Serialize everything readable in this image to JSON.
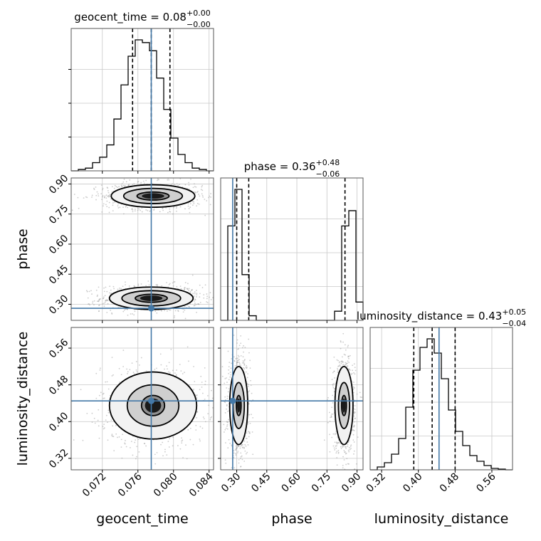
{
  "chart_data": {
    "type": "corner",
    "parameters": [
      {
        "name": "geocent_time",
        "title": "geocent_time = 0.08",
        "title_sup": "+0.00",
        "title_sub": "−0.00",
        "axis_label": "geocent_time",
        "range": [
          0.0685,
          0.0845
        ],
        "ticks": [
          0.072,
          0.076,
          0.08,
          0.084
        ],
        "tick_labels": [
          "0.072",
          "0.076",
          "0.080",
          "0.084"
        ],
        "truth": 0.0775,
        "quantiles": [
          0.0754,
          0.0775,
          0.0796
        ],
        "hist_edges_start": 0.0685,
        "hist_bin_width": 0.0008,
        "hist_counts": [
          0.0,
          0.01,
          0.02,
          0.06,
          0.1,
          0.19,
          0.38,
          0.63,
          0.84,
          0.96,
          0.94,
          0.88,
          0.68,
          0.45,
          0.24,
          0.12,
          0.06,
          0.02,
          0.01,
          0.0
        ]
      },
      {
        "name": "phase",
        "title": "phase = 0.36",
        "title_sup": "+0.48",
        "title_sub": "−0.06",
        "axis_label": "phase",
        "range": [
          0.22,
          0.93
        ],
        "ticks": [
          0.3,
          0.45,
          0.6,
          0.75,
          0.9
        ],
        "tick_labels": [
          "0.30",
          "0.45",
          "0.60",
          "0.75",
          "0.90"
        ],
        "truth": 0.28,
        "quantiles": [
          0.3,
          0.36,
          0.84
        ],
        "hist_edges_start": 0.22,
        "hist_bin_width": 0.0355,
        "hist_counts": [
          0.0,
          0.62,
          0.86,
          0.3,
          0.03,
          0.0,
          0.0,
          0.0,
          0.0,
          0.0,
          0.0,
          0.0,
          0.0,
          0.0,
          0.0,
          0.0,
          0.06,
          0.62,
          0.72,
          0.12
        ]
      },
      {
        "name": "luminosity_distance",
        "title": "luminosity_distance = 0.43",
        "title_sup": "+0.05",
        "title_sub": "−0.04",
        "axis_label": "luminosity_distance",
        "range": [
          0.295,
          0.605
        ],
        "ticks": [
          0.32,
          0.4,
          0.48,
          0.56
        ],
        "tick_labels": [
          "0.32",
          "0.40",
          "0.48",
          "0.56"
        ],
        "truth": 0.445,
        "quantiles": [
          0.39,
          0.43,
          0.48
        ],
        "hist_edges_start": 0.295,
        "hist_bin_width": 0.0155,
        "hist_counts": [
          0.0,
          0.02,
          0.05,
          0.11,
          0.22,
          0.44,
          0.7,
          0.86,
          0.92,
          0.82,
          0.64,
          0.42,
          0.27,
          0.17,
          0.1,
          0.06,
          0.03,
          0.01,
          0.005,
          0.0
        ]
      }
    ],
    "panels_2d": [
      {
        "x": "geocent_time",
        "y": "phase",
        "truth": [
          0.0775,
          0.28
        ],
        "modes": [
          {
            "center": [
              0.0775,
              0.33
            ],
            "contours": [
              [
                0.0018,
                0.02
              ],
              [
                0.0033,
                0.038
              ],
              [
                0.0047,
                0.056
              ]
            ]
          },
          {
            "center": [
              0.0777,
              0.84
            ],
            "contours": [
              [
                0.0018,
                0.02
              ],
              [
                0.0033,
                0.038
              ],
              [
                0.0047,
                0.056
              ]
            ]
          }
        ]
      },
      {
        "x": "geocent_time",
        "y": "luminosity_distance",
        "truth": [
          0.0775,
          0.445
        ],
        "modes": [
          {
            "center": [
              0.0777,
              0.435
            ],
            "contours": [
              [
                0.0013,
                0.022
              ],
              [
                0.0029,
                0.045
              ],
              [
                0.0049,
                0.073
              ]
            ]
          }
        ]
      },
      {
        "x": "phase",
        "y": "luminosity_distance",
        "truth": [
          0.28,
          0.445
        ],
        "modes": [
          {
            "center": [
              0.31,
              0.435
            ],
            "contours": [
              [
                0.012,
                0.022
              ],
              [
                0.028,
                0.05
              ],
              [
                0.045,
                0.085
              ]
            ]
          },
          {
            "center": [
              0.835,
              0.435
            ],
            "contours": [
              [
                0.012,
                0.022
              ],
              [
                0.028,
                0.05
              ],
              [
                0.045,
                0.085
              ]
            ]
          }
        ]
      }
    ],
    "grid": true,
    "colors": {
      "truth": "#4479a8",
      "contour": "#000000",
      "grid": "#c8c8c8"
    }
  }
}
